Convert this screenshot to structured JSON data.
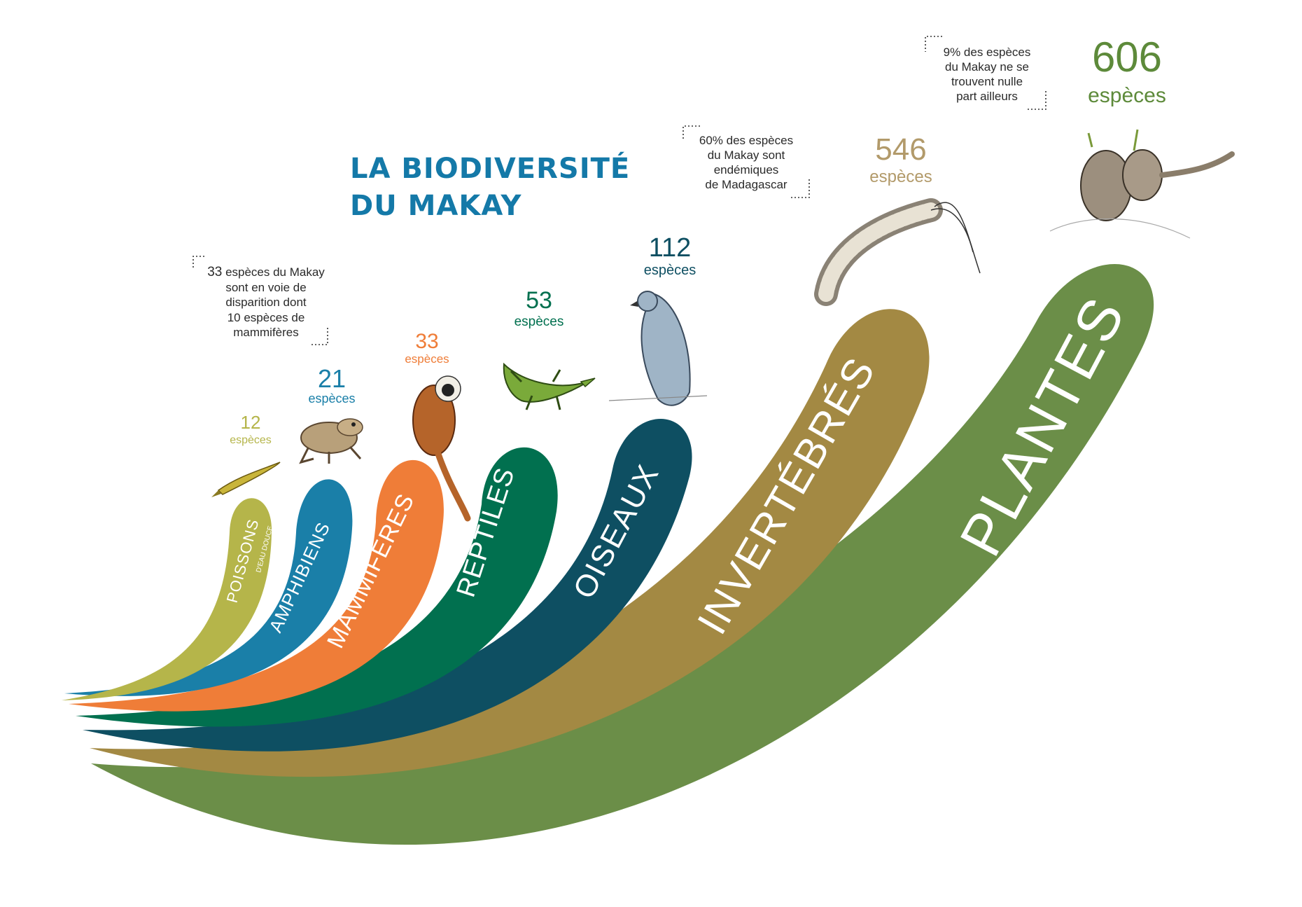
{
  "title": {
    "line1": "LA BIODIVERSITÉ",
    "line2": "DU MAKAY"
  },
  "unit_label": "espèces",
  "colors": {
    "title": "#1479a8",
    "note_text": "#2a2a2a"
  },
  "notes": [
    {
      "id": "endangered",
      "lead": "33",
      "lines": [
        "espèces du Makay",
        "sont en voie de",
        "disparition dont",
        "10 espèces de",
        "mammifères"
      ]
    },
    {
      "id": "endemic-madagascar",
      "lines": [
        "60% des espèces",
        "du Makay sont",
        "endémiques",
        "de Madagascar"
      ]
    },
    {
      "id": "endemic-makay",
      "lines": [
        "9% des espèces",
        "du Makay ne se",
        "trouvent nulle",
        "part ailleurs"
      ]
    }
  ],
  "groups": [
    {
      "id": "poissons",
      "name": "POISSONS",
      "sub": "D'EAU DOUCE",
      "count": "12",
      "color": "#b5b54a",
      "count_color": "#b5b54a",
      "animal": "fish-illustration"
    },
    {
      "id": "amphibiens",
      "name": "AMPHIBIENS",
      "count": "21",
      "color": "#1a7fa8",
      "count_color": "#1a7fa8",
      "animal": "frog-illustration"
    },
    {
      "id": "mammiferes",
      "name": "MAMMIFÈRES",
      "count": "33",
      "color": "#ef7d38",
      "count_color": "#ef7d38",
      "animal": "lemur-illustration"
    },
    {
      "id": "reptiles",
      "name": "REPTILES",
      "count": "53",
      "color": "#01704f",
      "count_color": "#01704f",
      "animal": "lizard-illustration"
    },
    {
      "id": "oiseaux",
      "name": "OISEAUX",
      "count": "112",
      "color": "#0e4f62",
      "count_color": "#0e4f62",
      "animal": "bird-illustration"
    },
    {
      "id": "invertebres",
      "name": "INVERTÉBRÉS",
      "count": "546",
      "color": "#a38943",
      "count_color": "#b29a6a",
      "animal": "millipede-illustration"
    },
    {
      "id": "plantes",
      "name": "PLANTES",
      "count": "606",
      "color": "#6b8e48",
      "count_color": "#5d8a3a",
      "animal": "plant-illustration"
    }
  ]
}
